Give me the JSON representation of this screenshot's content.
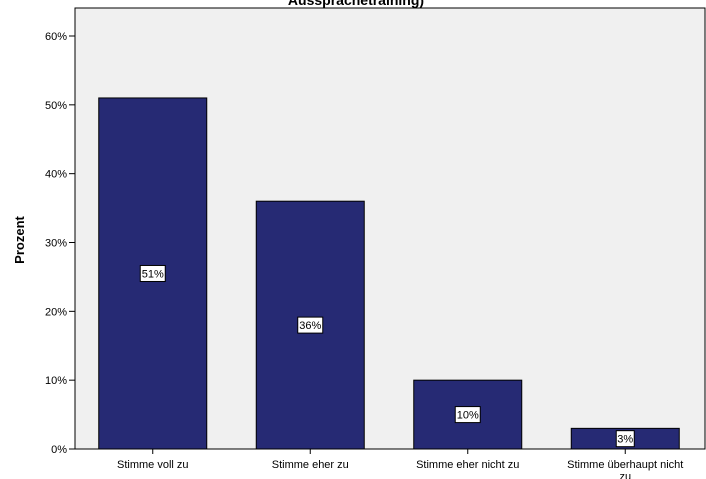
{
  "chart_data": {
    "type": "bar",
    "title": "Aussprachetraining)",
    "xlabel": "",
    "ylabel": "Prozent",
    "categories": [
      "Stimme voll zu",
      "Stimme eher zu",
      "Stimme eher nicht zu",
      "Stimme überhaupt nicht zu"
    ],
    "values": [
      51,
      36,
      10,
      3
    ],
    "data_labels": [
      "51%",
      "36%",
      "10%",
      "3%"
    ],
    "ylim": [
      0,
      60
    ],
    "yticks": [
      "0%",
      "10%",
      "20%",
      "30%",
      "40%",
      "50%",
      "60%"
    ],
    "grid": false,
    "legend": "none",
    "colors": {
      "bar": "#262a74",
      "plot_background": "#f0f0f0",
      "label_box": "#ffffff"
    }
  }
}
